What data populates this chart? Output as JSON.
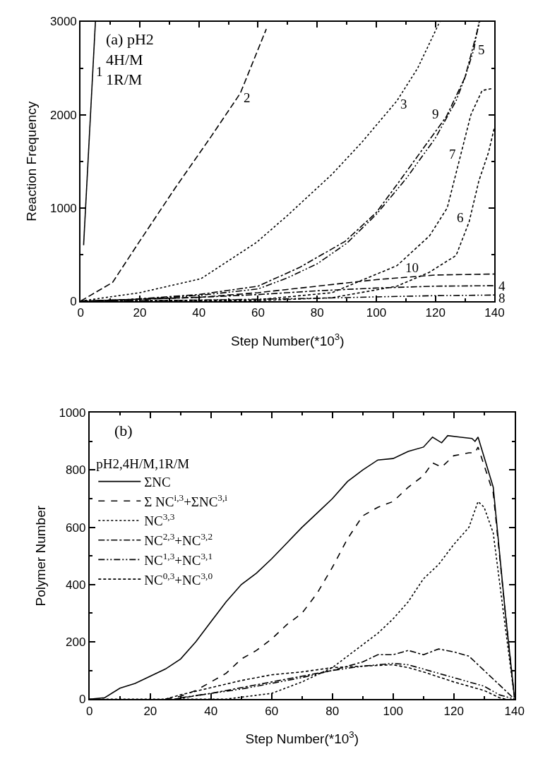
{
  "chart_data": [
    {
      "type": "line",
      "xlabel": "Step Number(*10$^{3}$)",
      "ylabel": "Reaction Frequency",
      "xlim": [
        0,
        140
      ],
      "ylim": [
        0,
        3000
      ],
      "xticks": [
        0,
        20,
        40,
        60,
        80,
        100,
        120,
        140
      ],
      "yticks": [
        0,
        1000,
        2000,
        3000
      ],
      "grid": false,
      "legend": false,
      "series": [
        {
          "name": "1",
          "color": "#000000",
          "line_style": "solid",
          "x": [
            1,
            5
          ],
          "values": [
            600,
            3000
          ]
        },
        {
          "name": "2",
          "color": "#000000",
          "line_style": "longdash",
          "x": [
            0,
            10.8,
            19.7,
            31.9,
            44,
            54,
            62.8
          ],
          "values": [
            0,
            200,
            630,
            1210,
            1760,
            2230,
            2920
          ]
        },
        {
          "name": "3",
          "color": "#000000",
          "line_style": "dotted",
          "x": [
            0,
            20,
            40.7,
            59.5,
            70,
            85,
            95,
            107,
            114,
            121.5
          ],
          "values": [
            0,
            90,
            240,
            630,
            920,
            1360,
            1700,
            2150,
            2500,
            3000
          ]
        },
        {
          "name": "5",
          "color": "#000000",
          "line_style": "dashdotdot",
          "x": [
            0,
            20,
            40,
            60,
            70,
            80,
            90,
            100,
            110,
            120,
            127,
            130,
            133,
            134.7
          ],
          "values": [
            0,
            20,
            60,
            130,
            250,
            400,
            620,
            930,
            1310,
            1750,
            2150,
            2400,
            2700,
            2990
          ]
        },
        {
          "name": "4",
          "color": "#000000",
          "line_style": "dashdot",
          "x": [
            0,
            40,
            60,
            80,
            100,
            120,
            140
          ],
          "values": [
            0,
            40,
            70,
            110,
            140,
            160,
            165
          ]
        },
        {
          "name": "7",
          "color": "#000000",
          "line_style": "shortdash",
          "x": [
            0,
            60,
            85,
            96,
            107,
            118,
            124,
            128,
            132,
            135.8,
            139
          ],
          "values": [
            0,
            15,
            90,
            235,
            380,
            700,
            1000,
            1500,
            2000,
            2260,
            2280
          ]
        },
        {
          "name": "6",
          "color": "#000000",
          "line_style": "shortdash",
          "x": [
            0,
            60,
            85,
            107,
            118,
            127,
            131.4,
            134.7,
            138,
            140
          ],
          "values": [
            0,
            5,
            36,
            160,
            310,
            490,
            850,
            1290,
            1600,
            1870
          ]
        },
        {
          "name": "8",
          "color": "#000000",
          "line_style": "dashdotdot",
          "x": [
            0,
            40,
            60,
            80,
            100,
            120,
            140
          ],
          "values": [
            0,
            10,
            20,
            30,
            45,
            58,
            65
          ]
        },
        {
          "name": "9",
          "color": "#000000",
          "line_style": "dashdot",
          "x": [
            10,
            20,
            40,
            60,
            74,
            89.4,
            100,
            107,
            115,
            123.7,
            130,
            135
          ],
          "values": [
            5,
            25,
            70,
            160,
            360,
            640,
            950,
            1250,
            1600,
            1980,
            2400,
            3000
          ]
        },
        {
          "name": "10",
          "color": "#000000",
          "line_style": "longdash",
          "x": [
            0,
            40,
            60,
            80,
            100,
            120,
            140
          ],
          "values": [
            0,
            40,
            90,
            160,
            230,
            280,
            290
          ]
        }
      ],
      "annotations": [
        "(a) pH2\n4H/M\n1R/M"
      ]
    },
    {
      "type": "line",
      "xlabel": "Step Number(*10$^{3}$)",
      "ylabel": "Polymer Number",
      "xlim": [
        0,
        140
      ],
      "ylim": [
        0,
        1000
      ],
      "xticks": [
        0,
        20,
        40,
        60,
        80,
        100,
        120,
        140
      ],
      "yticks": [
        0,
        200,
        400,
        600,
        800,
        1000
      ],
      "grid": false,
      "legend": "top left",
      "legend_title": "pH2,4H/M,1R/M",
      "series": [
        {
          "name": "ΣNC",
          "color": "#000000",
          "line_style": "solid",
          "x": [
            0,
            5,
            10,
            15,
            20,
            25,
            30,
            35,
            40,
            45,
            50,
            55,
            60,
            65,
            70,
            75,
            80,
            85,
            90,
            95,
            100,
            105,
            110,
            113,
            116,
            118,
            122,
            126,
            127,
            128,
            133,
            137,
            140
          ],
          "values": [
            0,
            5,
            38,
            55,
            80,
            105,
            140,
            200,
            270,
            340,
            400,
            440,
            490,
            545,
            600,
            650,
            700,
            760,
            800,
            835,
            840,
            865,
            880,
            915,
            895,
            920,
            915,
            910,
            900,
            915,
            740,
            300,
            5
          ]
        },
        {
          "name": "Σ NC$^{i,3}$+ΣNC$^{3,i}$",
          "color": "#000000",
          "line_style": "dashed",
          "x": [
            25,
            30,
            35,
            40,
            45,
            50,
            55,
            60,
            65,
            70,
            75,
            80,
            85,
            90,
            95,
            100,
            105,
            110,
            113,
            116,
            120,
            125,
            127,
            128,
            133,
            137,
            140
          ],
          "values": [
            0,
            10,
            30,
            60,
            90,
            140,
            170,
            210,
            260,
            300,
            370,
            460,
            560,
            640,
            670,
            690,
            740,
            780,
            825,
            810,
            850,
            860,
            860,
            880,
            720,
            300,
            5
          ]
        },
        {
          "name": "NC$^{3,3}$",
          "color": "#000000",
          "line_style": "dotted",
          "x": [
            0,
            45,
            60,
            70,
            80,
            90,
            95,
            100,
            105,
            110,
            115,
            120,
            125,
            128,
            130,
            133,
            137,
            140
          ],
          "values": [
            0,
            0,
            20,
            60,
            110,
            190,
            230,
            280,
            340,
            420,
            470,
            540,
            600,
            690,
            670,
            580,
            250,
            5
          ]
        },
        {
          "name": "NC$^{2,3}$+NC$^{3,2}$",
          "color": "#000000",
          "line_style": "dashdot",
          "x": [
            28,
            40,
            50,
            60,
            70,
            80,
            90,
            95,
            100,
            105,
            110,
            115,
            120,
            125,
            130,
            135,
            140
          ],
          "values": [
            0,
            20,
            40,
            60,
            80,
            100,
            130,
            155,
            155,
            170,
            155,
            175,
            165,
            150,
            100,
            50,
            0
          ]
        },
        {
          "name": "NC$^{1,3}$+NC$^{3,1}$",
          "color": "#000000",
          "line_style": "dashdotdot",
          "x": [
            30,
            40,
            50,
            60,
            70,
            80,
            90,
            100,
            105,
            110,
            120,
            130,
            135,
            140
          ],
          "values": [
            5,
            20,
            35,
            55,
            75,
            100,
            115,
            125,
            120,
            105,
            75,
            45,
            15,
            0
          ]
        },
        {
          "name": "NC$^{0,3}$+NC$^{3,0}$",
          "color": "#000000",
          "line_style": "shortdash",
          "x": [
            25,
            30,
            40,
            50,
            60,
            70,
            80,
            90,
            100,
            105,
            110,
            120,
            130,
            135,
            137
          ],
          "values": [
            0,
            15,
            40,
            65,
            85,
            95,
            110,
            115,
            120,
            110,
            95,
            60,
            30,
            5,
            0
          ]
        }
      ],
      "annotations": [
        "(b)"
      ]
    }
  ]
}
